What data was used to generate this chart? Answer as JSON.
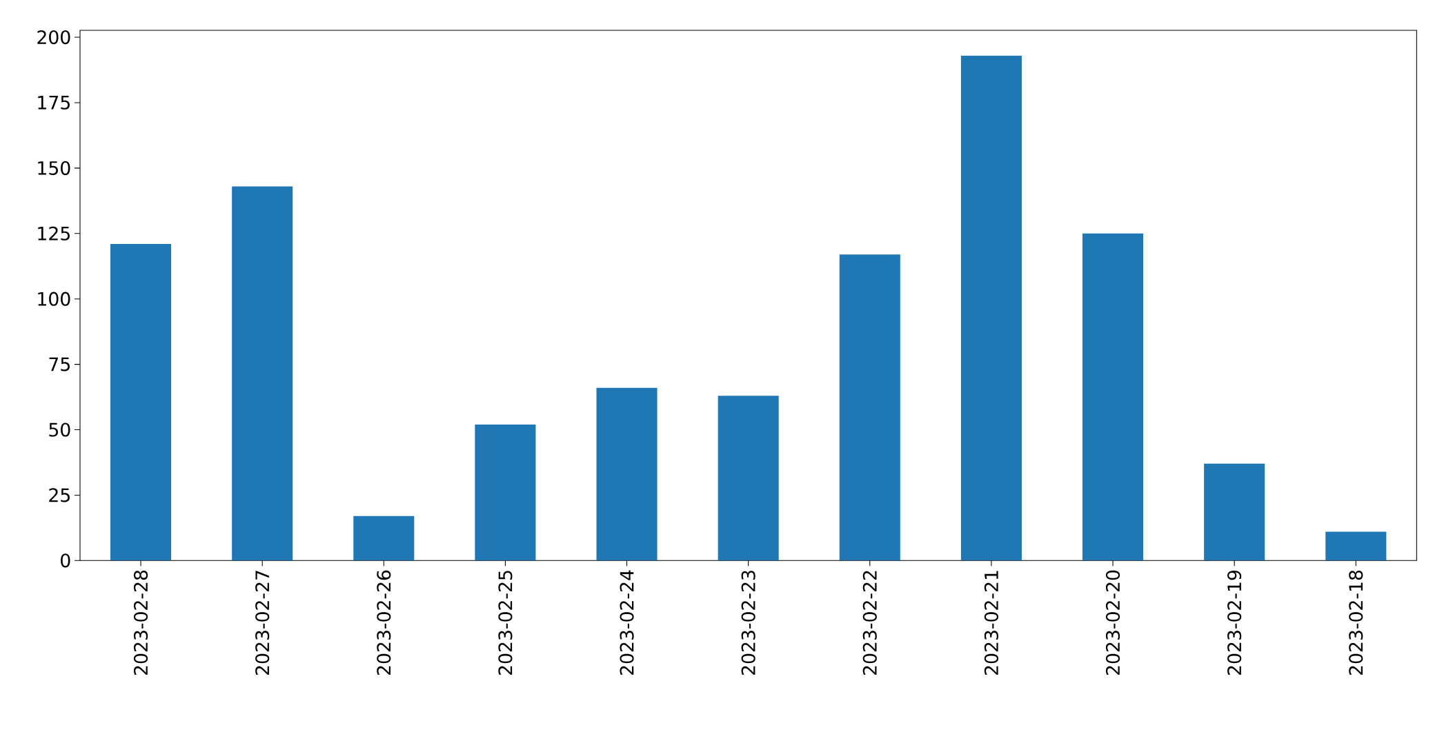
{
  "chart_data": {
    "type": "bar",
    "categories": [
      "2023-02-28",
      "2023-02-27",
      "2023-02-26",
      "2023-02-25",
      "2023-02-24",
      "2023-02-23",
      "2023-02-22",
      "2023-02-21",
      "2023-02-20",
      "2023-02-19",
      "2023-02-18"
    ],
    "values": [
      121,
      143,
      17,
      52,
      66,
      63,
      117,
      193,
      125,
      37,
      11
    ],
    "color": "#1f77b4",
    "ylim": [
      0,
      202.65
    ],
    "yticks": [
      0,
      25,
      50,
      75,
      100,
      125,
      150,
      175,
      200
    ]
  }
}
